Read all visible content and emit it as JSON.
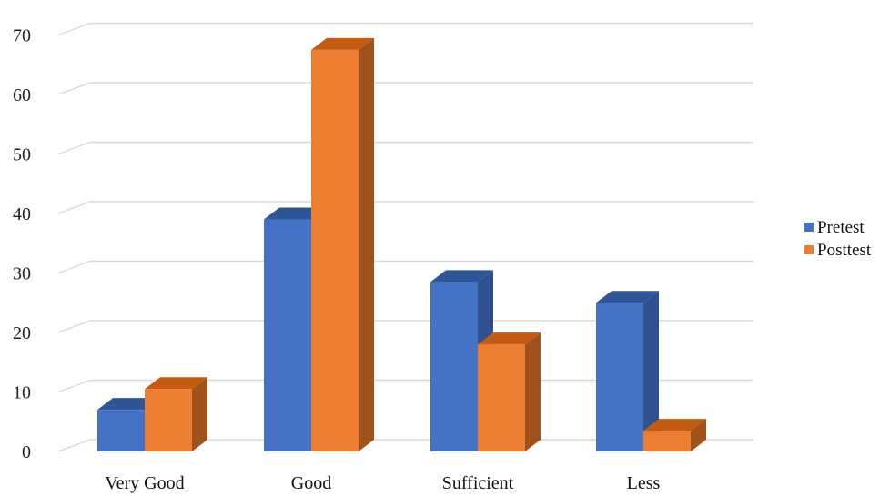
{
  "chart_data": {
    "type": "bar",
    "title": "",
    "xlabel": "",
    "ylabel": "",
    "categories": [
      "Very Good",
      "Good",
      "Sufficient",
      "Less"
    ],
    "series": [
      {
        "name": "Pretest",
        "values": [
          7,
          39,
          28.5,
          25
        ],
        "color": "#4472C4",
        "side_color": "#2F528F",
        "top_color": "#2F5597"
      },
      {
        "name": "Posttest",
        "values": [
          10.5,
          67.5,
          18,
          3.5
        ],
        "color": "#ED7D31",
        "side_color": "#A0521C",
        "top_color": "#C55A11"
      }
    ],
    "ylim": [
      0,
      70
    ],
    "yticks": [
      0,
      10,
      20,
      30,
      40,
      50,
      60,
      70
    ],
    "grid": true,
    "legend": "right",
    "style": "3d-clustered-column"
  }
}
